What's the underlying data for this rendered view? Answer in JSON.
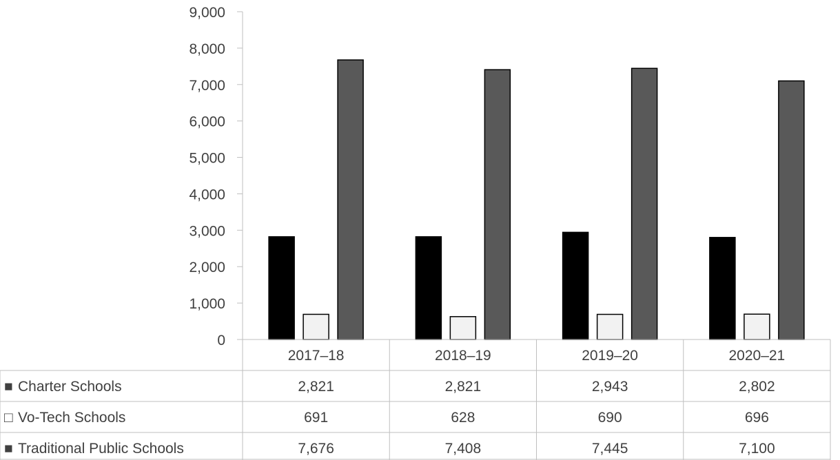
{
  "chart_data": {
    "type": "bar",
    "categories": [
      "2017–18",
      "2018–19",
      "2019–20",
      "2020–21"
    ],
    "series": [
      {
        "name": "Charter Schools",
        "values": [
          2821,
          2821,
          2943,
          2802
        ],
        "labels": [
          "2,821",
          "2,821",
          "2,943",
          "2,802"
        ],
        "color": "#000000",
        "legend_marker": "■"
      },
      {
        "name": "Vo-Tech Schools",
        "values": [
          691,
          628,
          690,
          696
        ],
        "labels": [
          "691",
          "628",
          "690",
          "696"
        ],
        "color": "#f2f2f2",
        "legend_marker": "□"
      },
      {
        "name": "Traditional Public Schools",
        "values": [
          7676,
          7408,
          7445,
          7100
        ],
        "labels": [
          "7,676",
          "7,408",
          "7,445",
          "7,100"
        ],
        "color": "#595959",
        "legend_marker": "■"
      }
    ],
    "ylim": [
      0,
      9000
    ],
    "yticks": [
      0,
      1000,
      2000,
      3000,
      4000,
      5000,
      6000,
      7000,
      8000,
      9000
    ],
    "ytick_labels": [
      "0",
      "1,000",
      "2,000",
      "3,000",
      "4,000",
      "5,000",
      "6,000",
      "7,000",
      "8,000",
      "9,000"
    ],
    "legend": "data-table",
    "grid": false
  }
}
